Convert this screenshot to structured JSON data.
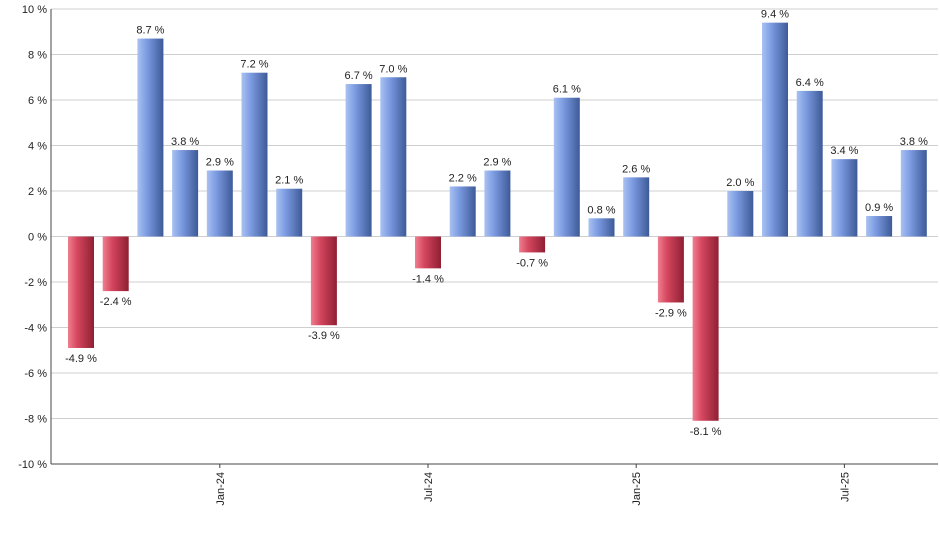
{
  "chart_data": {
    "type": "bar",
    "title": "",
    "xlabel": "",
    "ylabel": "",
    "ylim": [
      -10,
      10
    ],
    "y_ticks": [
      -10,
      -8,
      -6,
      -4,
      -2,
      0,
      2,
      4,
      6,
      8,
      10
    ],
    "y_tick_suffix": " %",
    "grid": true,
    "x_tick_labels": [
      {
        "label": "Jan-24",
        "index": 4
      },
      {
        "label": "Jul-24",
        "index": 10
      },
      {
        "label": "Jan-25",
        "index": 16
      },
      {
        "label": "Jul-25",
        "index": 22
      }
    ],
    "values": [
      -4.9,
      -2.4,
      8.7,
      3.8,
      2.9,
      7.2,
      2.1,
      -3.9,
      6.7,
      7.0,
      -1.4,
      2.2,
      2.9,
      -0.7,
      6.1,
      0.8,
      2.6,
      -2.9,
      -8.1,
      2.0,
      9.4,
      6.4,
      3.4,
      0.9,
      3.8
    ],
    "data_labels": [
      "-4.9 %",
      "-2.4 %",
      "8.7 %",
      "3.8 %",
      "2.9 %",
      "7.2 %",
      "2.1 %",
      "-3.9 %",
      "6.7 %",
      "7.0 %",
      "-1.4 %",
      "2.2 %",
      "2.9 %",
      "-0.7 %",
      "6.1 %",
      "0.8 %",
      "2.6 %",
      "-2.9 %",
      "-8.1 %",
      "2.0 %",
      "9.4 %",
      "6.4 %",
      "3.4 %",
      "0.9 %",
      "3.8 %"
    ],
    "colors": {
      "positive": "#7c98d6",
      "negative": "#c9485e",
      "grid": "#cfcfcf",
      "axis": "#444444"
    }
  }
}
